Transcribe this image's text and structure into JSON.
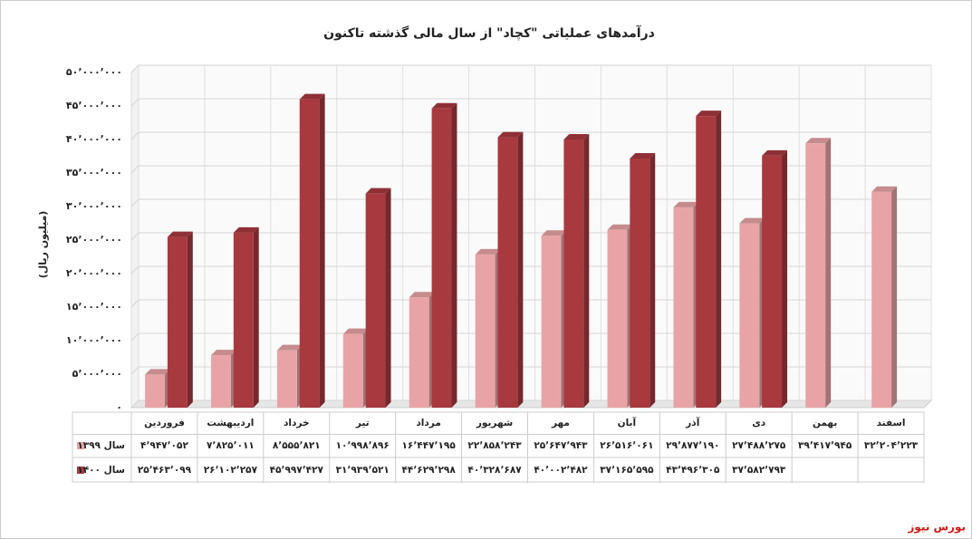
{
  "chart_data": {
    "type": "bar3d",
    "title": "درآمدهای عملیاتی \"کچاد\" از سال مالی گذشته تاکنون",
    "y_label": "(میلیون ریال)",
    "source": "بورس نیوز",
    "categories": [
      "فروردین",
      "اردیبهشت",
      "خرداد",
      "تیر",
      "مرداد",
      "شهریور",
      "مهر",
      "آبان",
      "آذر",
      "دی",
      "بهمن",
      "اسفند"
    ],
    "series": [
      {
        "name": "سال ۱۳۹۹",
        "color": "#e8a3a6",
        "values": [
          4947052,
          7825011,
          8555821,
          10998896,
          16447195,
          22858243,
          25647943,
          26516061,
          29877190,
          27488275,
          39417945,
          32204223
        ],
        "value_labels": [
          "۴٬۹۴۷٬۰۵۲",
          "۷٬۸۲۵٬۰۱۱",
          "۸٬۵۵۵٬۸۲۱",
          "۱۰٬۹۹۸٬۸۹۶",
          "۱۶٬۴۴۷٬۱۹۵",
          "۲۲٬۸۵۸٬۲۴۳",
          "۲۵٬۶۴۷٬۹۴۳",
          "۲۶٬۵۱۶٬۰۶۱",
          "۲۹٬۸۷۷٬۱۹۰",
          "۲۷٬۴۸۸٬۲۷۵",
          "۳۹٬۴۱۷٬۹۴۵",
          "۳۲٬۲۰۴٬۲۲۳"
        ]
      },
      {
        "name": "سال ۱۴۰۰",
        "color": "#a8393f",
        "values": [
          25463099,
          26102257,
          45997427,
          31939521,
          44629298,
          40328687,
          40002482,
          37165595,
          43496305,
          37582793,
          null,
          null
        ],
        "value_labels": [
          "۲۵٬۴۶۳٬۰۹۹",
          "۲۶٬۱۰۲٬۲۵۷",
          "۴۵٬۹۹۷٬۴۲۷",
          "۳۱٬۹۳۹٬۵۲۱",
          "۴۴٬۶۲۹٬۲۹۸",
          "۴۰٬۳۲۸٬۶۸۷",
          "۴۰٬۰۰۲٬۴۸۲",
          "۳۷٬۱۶۵٬۵۹۵",
          "۴۳٬۴۹۶٬۳۰۵",
          "۳۷٬۵۸۲٬۷۹۳",
          null,
          null
        ]
      }
    ],
    "ylim": [
      0,
      50000000
    ],
    "yticks": [
      {
        "value": 0,
        "label": "۰"
      },
      {
        "value": 5000000,
        "label": "۵٬۰۰۰٬۰۰۰"
      },
      {
        "value": 10000000,
        "label": "۱۰٬۰۰۰٬۰۰۰"
      },
      {
        "value": 15000000,
        "label": "۱۵٬۰۰۰٬۰۰۰"
      },
      {
        "value": 20000000,
        "label": "۲۰٬۰۰۰٬۰۰۰"
      },
      {
        "value": 25000000,
        "label": "۲۵٬۰۰۰٬۰۰۰"
      },
      {
        "value": 30000000,
        "label": "۳۰٬۰۰۰٬۰۰۰"
      },
      {
        "value": 35000000,
        "label": "۳۵٬۰۰۰٬۰۰۰"
      },
      {
        "value": 40000000,
        "label": "۴۰٬۰۰۰٬۰۰۰"
      },
      {
        "value": 45000000,
        "label": "۴۵٬۰۰۰٬۰۰۰"
      },
      {
        "value": 50000000,
        "label": "۵۰٬۰۰۰٬۰۰۰"
      }
    ],
    "grid": true
  }
}
